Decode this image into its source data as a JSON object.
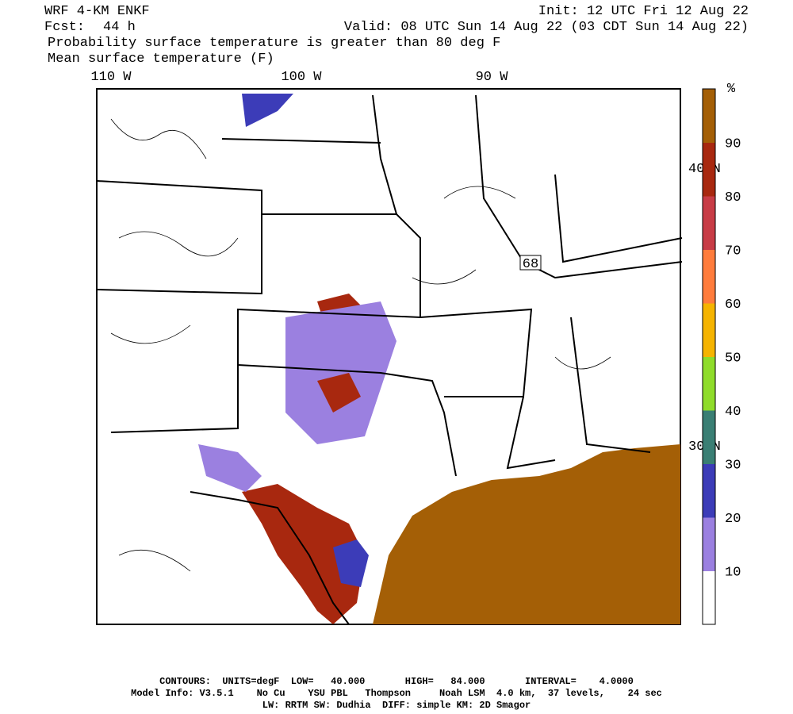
{
  "header": {
    "model": "WRF 4-KM ENKF",
    "init": "Init: 12 UTC Fri 12 Aug 22",
    "fcst_label": "Fcst:",
    "fcst_value": "44 h",
    "valid": "Valid: 08 UTC Sun 14 Aug 22 (03 CDT Sun 14 Aug 22)",
    "field1": "Probability surface temperature is greater than 80 deg F",
    "field2": "Mean surface temperature (F)"
  },
  "axes": {
    "longitude_labels": [
      "110 W",
      "100 W",
      "90 W"
    ],
    "latitude_labels": [
      "40 N",
      "30 N"
    ]
  },
  "map": {
    "contour_label": "68"
  },
  "colorbar": {
    "unit": "%",
    "levels": [
      10,
      20,
      30,
      40,
      50,
      60,
      70,
      80,
      90
    ],
    "colors": [
      "#ffffff",
      "#9b80e0",
      "#3c3cb8",
      "#3a7f74",
      "#8fdc2a",
      "#f5b400",
      "#ff7c3c",
      "#c83c46",
      "#a8280f",
      "#a45f06"
    ]
  },
  "footer": {
    "contours": "CONTOURS:  UNITS=degF  LOW=   40.000       HIGH=   84.000       INTERVAL=    4.0000",
    "model_info": "Model Info: V3.5.1    No Cu    YSU PBL   Thompson     Noah LSM  4.0 km,  37 levels,    24 sec",
    "physics": "LW: RRTM SW: Dudhia  DIFF: simple KM: 2D Smagor"
  }
}
